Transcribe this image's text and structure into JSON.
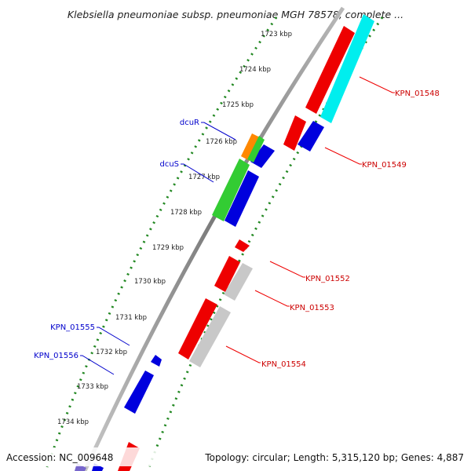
{
  "title": "Klebsiella pneumoniae subsp. pneumoniae MGH 78578, complete ...",
  "accession_line": "Accession: NC_009648",
  "stats_line": "Topology: circular; Length: 5,315,120 bp; Genes: 4,887",
  "ticks": [
    "1723 kbp",
    "1724 kbp",
    "1725 kbp",
    "1726 kbp",
    "1727 kbp",
    "1728 kbp",
    "1729 kbp",
    "1730 kbp",
    "1731 kbp",
    "1732 kbp",
    "1733 kbp",
    "1734 kbp"
  ],
  "gene_labels": {
    "right": [
      "KPN_01548",
      "KPN_01549",
      "KPN_01552",
      "KPN_01553",
      "KPN_01554"
    ],
    "left": [
      "dcuR",
      "dcuS",
      "KPN_01555",
      "KPN_01556"
    ]
  },
  "colors": {
    "red": "#ee0000",
    "blue": "#0000dd",
    "cyan": "#00eeee",
    "green": "#33cc33",
    "orange": "#ff8800",
    "gray": "#c8c8c8",
    "backbone": "#8a8a8a",
    "tick_dots": "#228822",
    "label_red": "#cc0000",
    "label_blue": "#0000cc"
  }
}
